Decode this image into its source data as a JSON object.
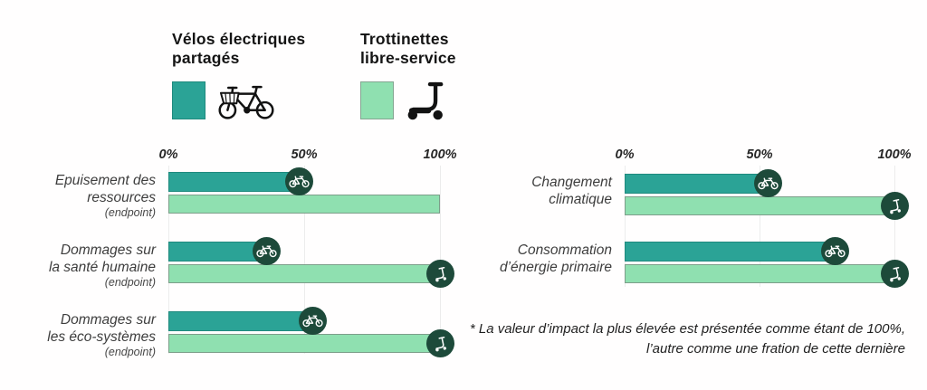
{
  "legend": {
    "items": [
      {
        "label": "Vélos électriques\npartagés",
        "icon": "bike",
        "color": "#2BA396"
      },
      {
        "label": "Trottinettes\nlibre-service",
        "icon": "scooter",
        "color": "#8FE0B0"
      }
    ]
  },
  "colors": {
    "bike_bar": "#2BA396",
    "scooter_bar": "#8FE0B0",
    "badge_circle": "#1D4A3A",
    "gridline": "#ECECEC",
    "text": "#1F1F1F"
  },
  "chart_data": [
    {
      "type": "bar",
      "orientation": "horizontal",
      "title": "",
      "categories": [
        "Epuisement des\nressources",
        "Dommages sur\nla santé humaine",
        "Dommages sur\nles éco-systèmes"
      ],
      "category_sublabels": [
        "(endpoint)",
        "(endpoint)",
        "(endpoint)"
      ],
      "series": [
        {
          "name": "Vélos électriques partagés",
          "color": "#2BA396",
          "values": [
            48,
            36,
            53
          ],
          "markers": [
            true,
            true,
            true
          ],
          "marker_icon": "bike"
        },
        {
          "name": "Trottinettes libre-service",
          "color": "#8FE0B0",
          "values": [
            100,
            100,
            100
          ],
          "markers": [
            false,
            true,
            true
          ],
          "marker_icon": "scooter"
        }
      ],
      "xlim": [
        0,
        100
      ],
      "x_ticks": [
        "0%",
        "50%",
        "100%"
      ],
      "grid": true,
      "legend_position": "top"
    },
    {
      "type": "bar",
      "orientation": "horizontal",
      "title": "",
      "categories": [
        "Changement\nclimatique",
        "Consommation\nd’énergie primaire"
      ],
      "category_sublabels": [
        "",
        ""
      ],
      "series": [
        {
          "name": "Vélos électriques partagés",
          "color": "#2BA396",
          "values": [
            53,
            78
          ],
          "markers": [
            true,
            true
          ],
          "marker_icon": "bike"
        },
        {
          "name": "Trottinettes libre-service",
          "color": "#8FE0B0",
          "values": [
            100,
            100
          ],
          "markers": [
            true,
            true
          ],
          "marker_icon": "scooter"
        }
      ],
      "xlim": [
        0,
        100
      ],
      "x_ticks": [
        "0%",
        "50%",
        "100%"
      ],
      "grid": true,
      "legend_position": "top"
    }
  ],
  "footnote": "* La valeur d’impact la plus élevée est présentée comme étant de 100%,\nl’autre comme une fration de cette dernière"
}
